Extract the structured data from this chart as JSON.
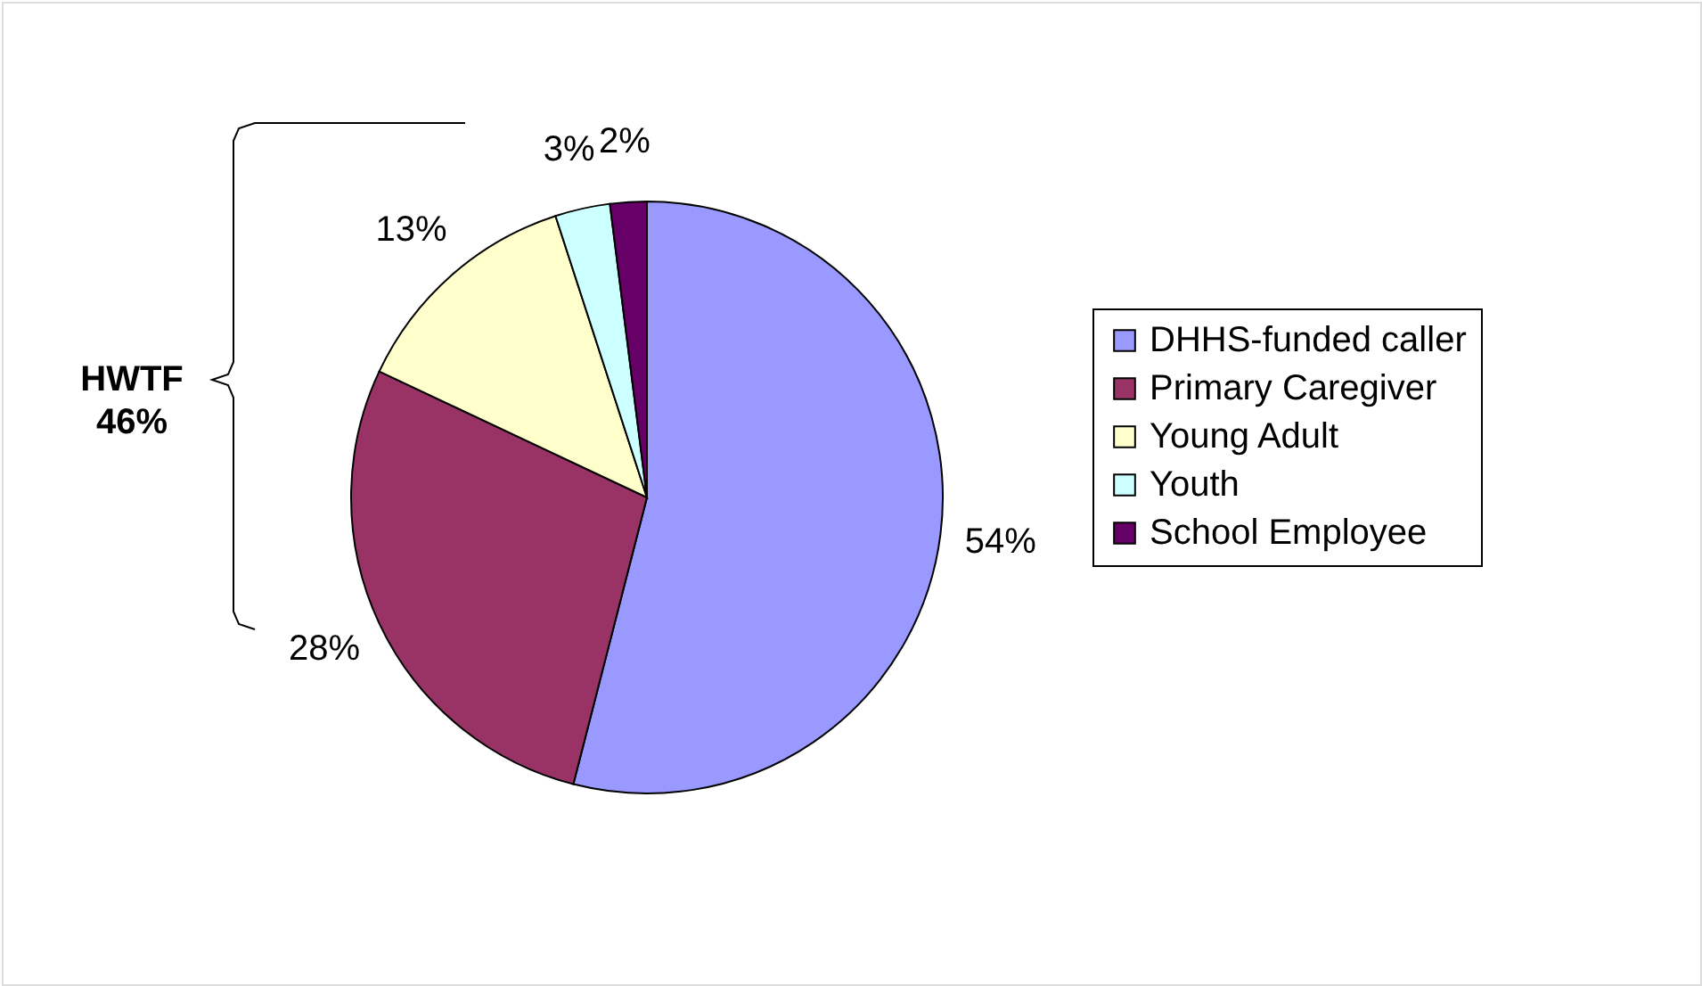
{
  "chart_data": {
    "type": "pie",
    "categories": [
      "DHHS-funded caller",
      "Primary Caregiver",
      "Young Adult",
      "Youth",
      "School Employee"
    ],
    "values": [
      54,
      28,
      13,
      3,
      2
    ],
    "colors": [
      "#9999ff",
      "#993366",
      "#ffffcc",
      "#ccffff",
      "#660066"
    ],
    "value_labels": [
      "54%",
      "28%",
      "13%",
      "3%",
      "2%"
    ],
    "legend": "right",
    "annotations": [
      "HWTF\n46%"
    ]
  }
}
